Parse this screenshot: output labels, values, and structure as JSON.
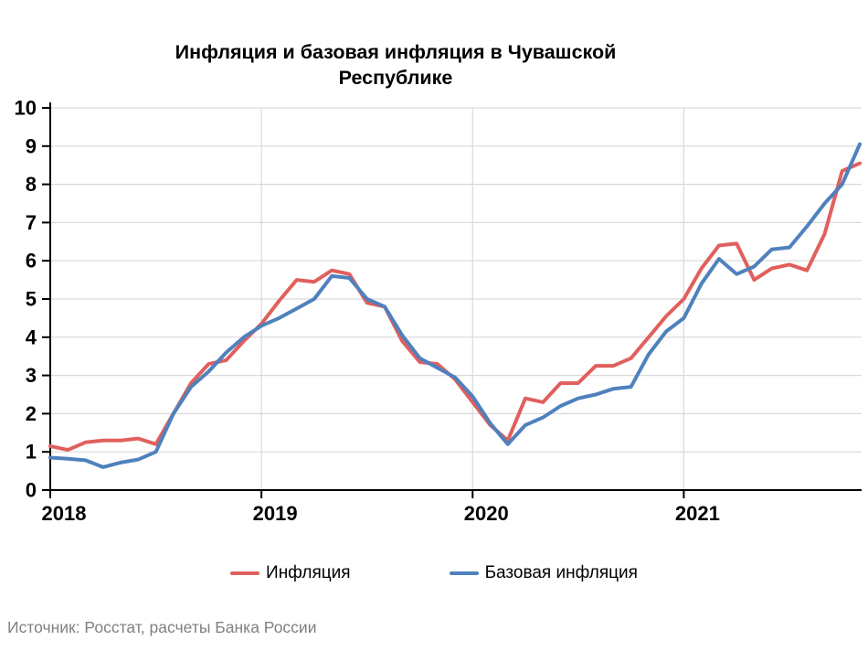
{
  "title": "Инфляция и базовая инфляция в Чувашской Республике",
  "source": "Источник: Росстат, расчеты Банка России",
  "legend": [
    {
      "label": "Инфляция",
      "color": "#e0605d"
    },
    {
      "label": "Базовая инфляция",
      "color": "#4f81bd"
    }
  ],
  "colors": {
    "inflation_line": "#e0605d",
    "core_inflation_line": "#4f81bd",
    "gridline": "#d9d9d9",
    "axis": "#000000",
    "source_text": "#808080"
  },
  "chart_data": {
    "type": "line",
    "title": "Инфляция и базовая инфляция в Чувашской Республике",
    "x_start": "2018-01",
    "x_freq": "monthly",
    "x_tick_labels": [
      "2018",
      "2019",
      "2020",
      "2021"
    ],
    "y_tick_labels": [
      "0",
      "1",
      "2",
      "3",
      "4",
      "5",
      "6",
      "7",
      "8",
      "9",
      "10"
    ],
    "ylim": [
      0,
      10
    ],
    "grid": true,
    "legend_position": "bottom",
    "units": "% year-over-year",
    "series": [
      {
        "name": "Инфляция",
        "color": "#e0605d",
        "values": [
          1.15,
          1.05,
          1.25,
          1.3,
          1.3,
          1.35,
          1.2,
          2.0,
          2.8,
          3.3,
          3.4,
          3.9,
          4.35,
          4.95,
          5.5,
          5.45,
          5.75,
          5.65,
          4.9,
          4.8,
          3.9,
          3.35,
          3.3,
          2.9,
          2.3,
          1.7,
          1.3,
          2.4,
          2.3,
          2.8,
          2.8,
          3.25,
          3.25,
          3.45,
          4.0,
          4.55,
          5.0,
          5.8,
          6.4,
          6.45,
          5.5,
          5.8,
          5.9,
          5.75,
          6.7,
          8.35,
          8.55
        ]
      },
      {
        "name": "Базовая инфляция",
        "color": "#4f81bd",
        "values": [
          0.85,
          0.82,
          0.78,
          0.6,
          0.72,
          0.8,
          1.0,
          2.0,
          2.7,
          3.1,
          3.6,
          4.0,
          4.3,
          4.5,
          4.75,
          5.0,
          5.6,
          5.55,
          5.0,
          4.8,
          4.05,
          3.45,
          3.2,
          2.95,
          2.45,
          1.75,
          1.2,
          1.7,
          1.9,
          2.2,
          2.4,
          2.5,
          2.65,
          2.7,
          3.55,
          4.15,
          4.5,
          5.4,
          6.05,
          5.65,
          5.85,
          6.3,
          6.35,
          6.9,
          7.5,
          8.0,
          9.05
        ]
      }
    ]
  }
}
